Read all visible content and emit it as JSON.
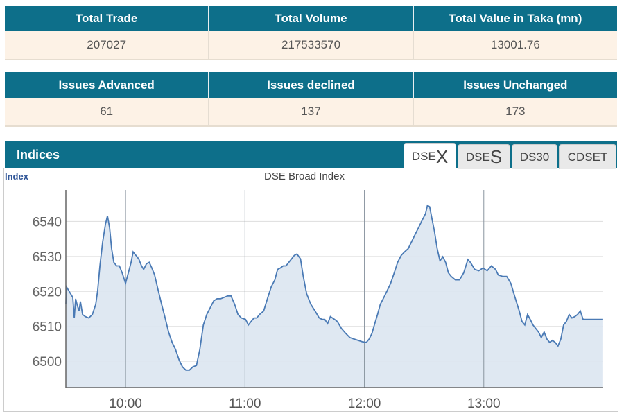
{
  "summary1": {
    "headers": [
      "Total Trade",
      "Total Volume",
      "Total Value in Taka (mn)"
    ],
    "values": [
      "207027",
      "217533570",
      "13001.76"
    ]
  },
  "summary2": {
    "headers": [
      "Issues Advanced",
      "Issues declined",
      "Issues Unchanged"
    ],
    "values": [
      "61",
      "137",
      "173"
    ]
  },
  "indices": {
    "title": "Indices",
    "tabs": [
      {
        "prefix": "DSE",
        "suffix": "X",
        "active": true
      },
      {
        "prefix": "DSE",
        "suffix": "S",
        "active": false
      },
      {
        "prefix": "DS30",
        "suffix": "",
        "active": false
      },
      {
        "prefix": "CDSET",
        "suffix": "",
        "active": false
      }
    ]
  },
  "colors": {
    "header": "#0d6f8a",
    "cell": "#fdf2e6",
    "line": "#4a7ab5",
    "fill": "#dce6f1"
  },
  "chart_data": {
    "type": "area",
    "title": "DSE Broad Index",
    "ylabel": "Index",
    "xlabel": "",
    "x_unit": "minutes since 09:30",
    "xlim": [
      0,
      270
    ],
    "ylim": [
      6492.5,
      6549
    ],
    "yticks": [
      6500,
      6510,
      6520,
      6530,
      6540
    ],
    "xticks": [
      {
        "value": 30,
        "label": "10:00"
      },
      {
        "value": 90,
        "label": "11:00"
      },
      {
        "value": 150,
        "label": "12:00"
      },
      {
        "value": 210,
        "label": "13:00"
      }
    ],
    "grid": true,
    "x": [
      0,
      0.3,
      1.4,
      2.4,
      3.5,
      4.2,
      4.9,
      5.6,
      6.6,
      7.3,
      8.4,
      9.8,
      11.5,
      13.3,
      15,
      16,
      17.1,
      18.5,
      19.9,
      20.9,
      22,
      23,
      24.1,
      25.5,
      26.9,
      28.3,
      30,
      31.4,
      32.8,
      33.8,
      35.2,
      36.6,
      38,
      39.1,
      40.5,
      41.9,
      43.2,
      44.6,
      46.4,
      48.1,
      49.9,
      51.6,
      53.4,
      55.1,
      56.9,
      58.6,
      60.3,
      62.1,
      63.8,
      65.6,
      67.3,
      69.1,
      70.8,
      72.5,
      74.3,
      76,
      77.8,
      79.5,
      81.3,
      83,
      84.8,
      86.5,
      88.2,
      90.3,
      91.7,
      93.1,
      94.5,
      95.9,
      97.3,
      99.4,
      101.5,
      103.2,
      105,
      106.4,
      107.8,
      109.2,
      110.6,
      112,
      113.4,
      114.8,
      116.1,
      117.9,
      119.3,
      121,
      123.1,
      125.2,
      127.3,
      128.7,
      130.1,
      131.5,
      132.9,
      135,
      136.4,
      138.5,
      140.6,
      142.7,
      144.7,
      146.8,
      148.9,
      151,
      152.4,
      153.8,
      155.2,
      156.6,
      158,
      159.8,
      161.5,
      163.2,
      165,
      166.7,
      168.5,
      170.2,
      172,
      173.7,
      175.4,
      177.2,
      178.9,
      180.7,
      181.7,
      182.8,
      183.8,
      185.2,
      186.6,
      188,
      189.4,
      190.8,
      192.2,
      193.6,
      195.7,
      197.8,
      199.9,
      202,
      203.3,
      205.4,
      207.5,
      209.6,
      211.7,
      213.8,
      215.9,
      217.3,
      219.4,
      221.5,
      223.6,
      225.7,
      227.8,
      229.2,
      230.6,
      232,
      233.3,
      234.7,
      236.1,
      237.5,
      238.9,
      240.3,
      241.7,
      243.1,
      244.5,
      245.9,
      247.3,
      248.7,
      250.1,
      251.5,
      252.9,
      254.3,
      255.7,
      257.1,
      258.5,
      259.9,
      262.6,
      269.6
    ],
    "values": [
      6516.3,
      6521.3,
      6520.3,
      6519.3,
      6518.3,
      6512.4,
      6517.9,
      6516.3,
      6514.4,
      6517.1,
      6513.4,
      6512.8,
      6512.4,
      6513.4,
      6516.3,
      6520.3,
      6527.3,
      6534.2,
      6539.2,
      6541.6,
      6538.2,
      6532.2,
      6528.3,
      6527.3,
      6527.3,
      6525.3,
      6522.3,
      6525.3,
      6528.3,
      6531.3,
      6530.3,
      6529.3,
      6527.3,
      6526.3,
      6527.9,
      6528.3,
      6526.7,
      6524.7,
      6520.3,
      6516.3,
      6512.4,
      6508.4,
      6505.4,
      6503.4,
      6500.4,
      6498.4,
      6497.5,
      6497.5,
      6498.4,
      6498.8,
      6503.4,
      6510.4,
      6513.4,
      6515.3,
      6517.3,
      6517.9,
      6517.9,
      6518.3,
      6518.7,
      6518.7,
      6516.3,
      6513.4,
      6512.4,
      6512,
      6510.4,
      6511.4,
      6512.4,
      6512.4,
      6513.4,
      6514.4,
      6518.3,
      6521.3,
      6523.3,
      6526.3,
      6526.7,
      6527.3,
      6527.3,
      6528.3,
      6529.3,
      6530.3,
      6530.7,
      6529.3,
      6524.3,
      6519.3,
      6516.3,
      6514.4,
      6512.4,
      6512,
      6512,
      6510.8,
      6512.8,
      6512,
      6511.4,
      6509.4,
      6508,
      6506.8,
      6506.4,
      6506,
      6505.6,
      6505.4,
      6506.4,
      6508,
      6510.8,
      6513.4,
      6516.3,
      6518.3,
      6520.3,
      6522.3,
      6525.3,
      6528.3,
      6530.3,
      6531.3,
      6532.2,
      6534.2,
      6536.2,
      6538.2,
      6540.2,
      6542.2,
      6544.6,
      6544.2,
      6541.2,
      6537.2,
      6532.2,
      6528.7,
      6529.9,
      6528.3,
      6525.3,
      6524.3,
      6523.3,
      6523.3,
      6525.3,
      6529.1,
      6528.3,
      6526.3,
      6525.9,
      6526.7,
      6525.9,
      6527.3,
      6526.3,
      6524.7,
      6524.3,
      6524.3,
      6522.3,
      6518.3,
      6514.4,
      6511.4,
      6510.4,
      6513.4,
      6512,
      6510.4,
      6509.4,
      6508.4,
      6506.8,
      6508.4,
      6506.4,
      6505.4,
      6506,
      6505.4,
      6504.4,
      6506.4,
      6510.4,
      6511.4,
      6513.4,
      6512.4,
      6512.8,
      6513.4,
      6514.4,
      6512,
      6512,
      6512
    ]
  }
}
